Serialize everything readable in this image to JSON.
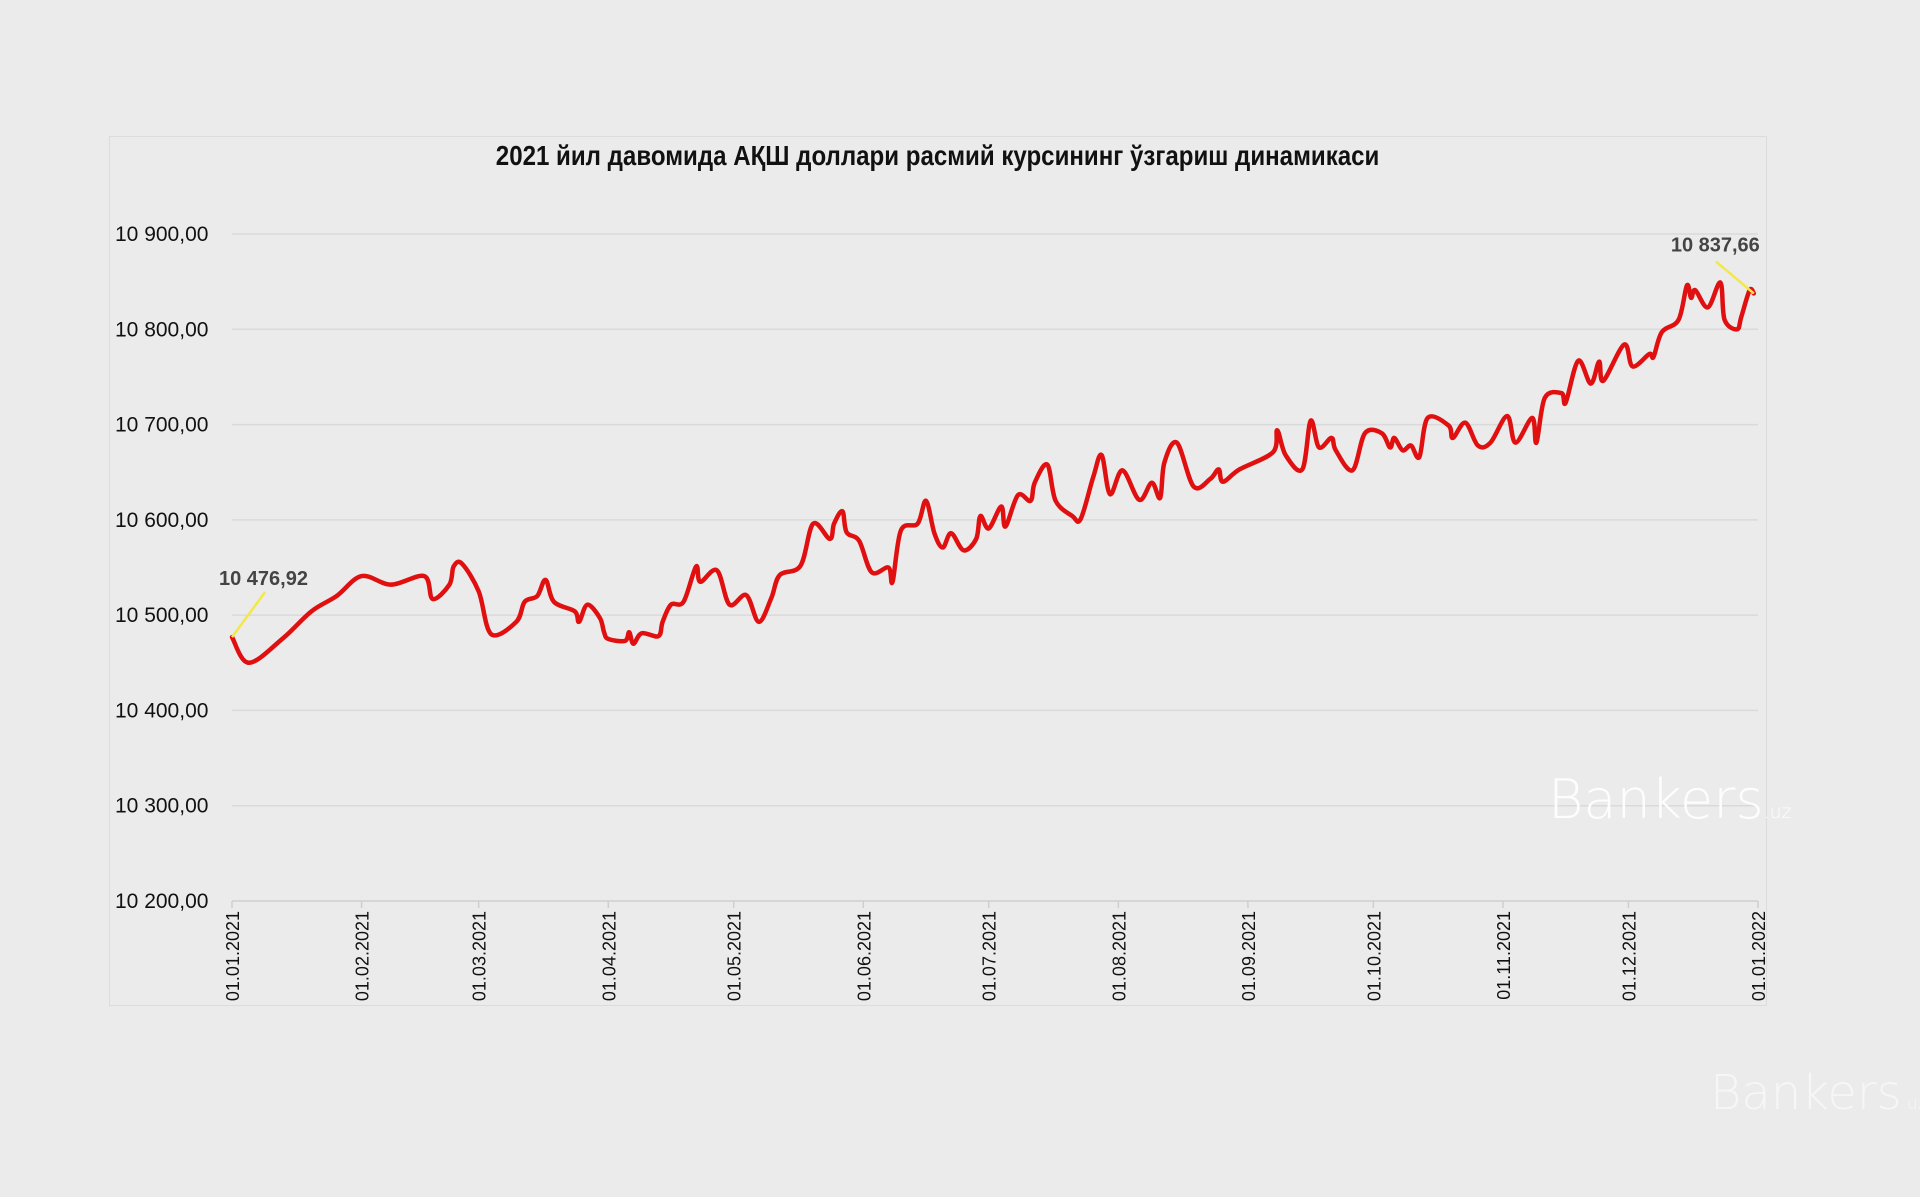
{
  "chart_data": {
    "type": "line",
    "title": "2021 йил давомида АҚШ доллари расмий курсининг ўзгариш динамикаси",
    "xlabel": "",
    "ylabel": "",
    "ylim": [
      10200,
      10900
    ],
    "yticks": [
      10200,
      10300,
      10400,
      10500,
      10600,
      10700,
      10800,
      10900
    ],
    "ytick_labels": [
      "10 200,00",
      "10 300,00",
      "10 400,00",
      "10 500,00",
      "10 600,00",
      "10 700,00",
      "10 800,00",
      "10 900,00"
    ],
    "xlim": [
      "01.01.2021",
      "01.01.2022"
    ],
    "xtick_labels": [
      "01.01.2021",
      "01.02.2021",
      "01.03.2021",
      "01.04.2021",
      "01.05.2021",
      "01.06.2021",
      "01.07.2021",
      "01.08.2021",
      "01.09.2021",
      "01.10.2021",
      "01.11.2021",
      "01.12.2021",
      "01.01.2022"
    ],
    "grid": "horizontal",
    "line_color": "#e01010",
    "annotation_color": "#f2e84a",
    "annotations": [
      {
        "label": "10 476,92",
        "x": "01.01.2021",
        "y": 10476.92
      },
      {
        "label": "10 837,66",
        "x": "31.12.2021",
        "y": 10837.66
      }
    ],
    "series": [
      {
        "x": [
          "01.01.2021",
          "05.01.2021",
          "13.01.2021",
          "20.01.2021",
          "26.01.2021",
          "01.02.2021",
          "08.02.2021",
          "16.02.2021",
          "18.02.2021",
          "22.02.2021",
          "23.02.2021",
          "25.02.2021",
          "01.03.2021",
          "04.03.2021",
          "10.03.2021",
          "12.03.2021",
          "15.03.2021",
          "17.03.2021",
          "19.03.2021",
          "24.03.2021",
          "25.03.2021",
          "27.03.2021",
          "30.03.2021",
          "31.03.2021",
          "01.04.2021",
          "05.04.2021",
          "06.04.2021",
          "07.04.2021",
          "09.04.2021",
          "13.04.2021",
          "14.04.2021",
          "16.04.2021",
          "19.04.2021",
          "22.04.2021",
          "23.04.2021",
          "27.04.2021",
          "30.04.2021",
          "04.05.2021",
          "07.05.2021",
          "10.05.2021",
          "12.05.2021",
          "17.05.2021",
          "20.05.2021",
          "24.05.2021",
          "25.05.2021",
          "27.05.2021",
          "28.05.2021",
          "31.05.2021",
          "03.06.2021",
          "07.06.2021",
          "08.06.2021",
          "10.06.2021",
          "14.06.2021",
          "16.06.2021",
          "18.06.2021",
          "20.06.2021",
          "22.06.2021",
          "25.06.2021",
          "28.06.2021",
          "29.06.2021",
          "01.07.2021",
          "04.07.2021",
          "05.07.2021",
          "08.07.2021",
          "11.07.2021",
          "12.07.2021",
          "15.07.2021",
          "17.07.2021",
          "21.07.2021",
          "23.07.2021",
          "26.07.2021",
          "28.07.2021",
          "30.07.2021",
          "02.08.2021",
          "06.08.2021",
          "09.08.2021",
          "11.08.2021",
          "12.08.2021",
          "15.08.2021",
          "19.08.2021",
          "23.08.2021",
          "25.08.2021",
          "26.08.2021",
          "30.08.2021",
          "07.09.2021",
          "08.09.2021",
          "10.09.2021",
          "14.09.2021",
          "16.09.2021",
          "18.09.2021",
          "21.09.2021",
          "22.09.2021",
          "26.09.2021",
          "29.09.2021",
          "03.10.2021",
          "05.10.2021",
          "06.10.2021",
          "08.10.2021",
          "10.10.2021",
          "12.10.2021",
          "14.10.2021",
          "19.10.2021",
          "20.10.2021",
          "23.10.2021",
          "26.10.2021",
          "29.10.2021",
          "02.11.2021",
          "04.11.2021",
          "08.11.2021",
          "09.11.2021",
          "11.11.2021",
          "15.11.2021",
          "16.11.2021",
          "19.11.2021",
          "22.11.2021",
          "24.11.2021",
          "25.11.2021",
          "30.11.2021",
          "02.12.2021",
          "06.12.2021",
          "07.12.2021",
          "09.12.2021",
          "13.12.2021",
          "15.12.2021",
          "16.12.2021",
          "17.12.2021",
          "20.12.2021",
          "23.12.2021",
          "24.12.2021",
          "27.12.2021",
          "28.12.2021",
          "30.12.2021",
          "31.12.2021"
        ],
        "values": [
          10476.92,
          10450,
          10475,
          10504,
          10520,
          10541,
          10532,
          10541,
          10517,
          10532,
          10551,
          10554,
          10525,
          10480,
          10493,
          10514,
          10520,
          10537,
          10514,
          10504,
          10493,
          10511,
          10497,
          10482,
          10475,
          10473,
          10482,
          10470,
          10481,
          10478,
          10493,
          10511,
          10514,
          10551,
          10535,
          10547,
          10511,
          10521,
          10493,
          10518,
          10542,
          10552,
          10596,
          10580,
          10596,
          10609,
          10587,
          10578,
          10545,
          10550,
          10535,
          10589,
          10596,
          10620,
          10586,
          10571,
          10586,
          10568,
          10580,
          10604,
          10591,
          10614,
          10593,
          10626,
          10620,
          10639,
          10658,
          10620,
          10604,
          10601,
          10645,
          10668,
          10627,
          10652,
          10621,
          10639,
          10623,
          10660,
          10681,
          10635,
          10643,
          10653,
          10640,
          10653,
          10671,
          10694,
          10668,
          10653,
          10704,
          10676,
          10686,
          10673,
          10652,
          10691,
          10691,
          10676,
          10686,
          10673,
          10678,
          10666,
          10707,
          10699,
          10686,
          10702,
          10678,
          10681,
          10709,
          10681,
          10707,
          10681,
          10728,
          10733,
          10723,
          10767,
          10743,
          10766,
          10746,
          10784,
          10761,
          10774,
          10771,
          10797,
          10810,
          10846,
          10833,
          10841,
          10823,
          10849,
          10810,
          10800,
          10813,
          10841,
          10837.66
        ]
      }
    ]
  },
  "watermark": {
    "brand": "Bankers",
    "suffix": ".uz"
  }
}
